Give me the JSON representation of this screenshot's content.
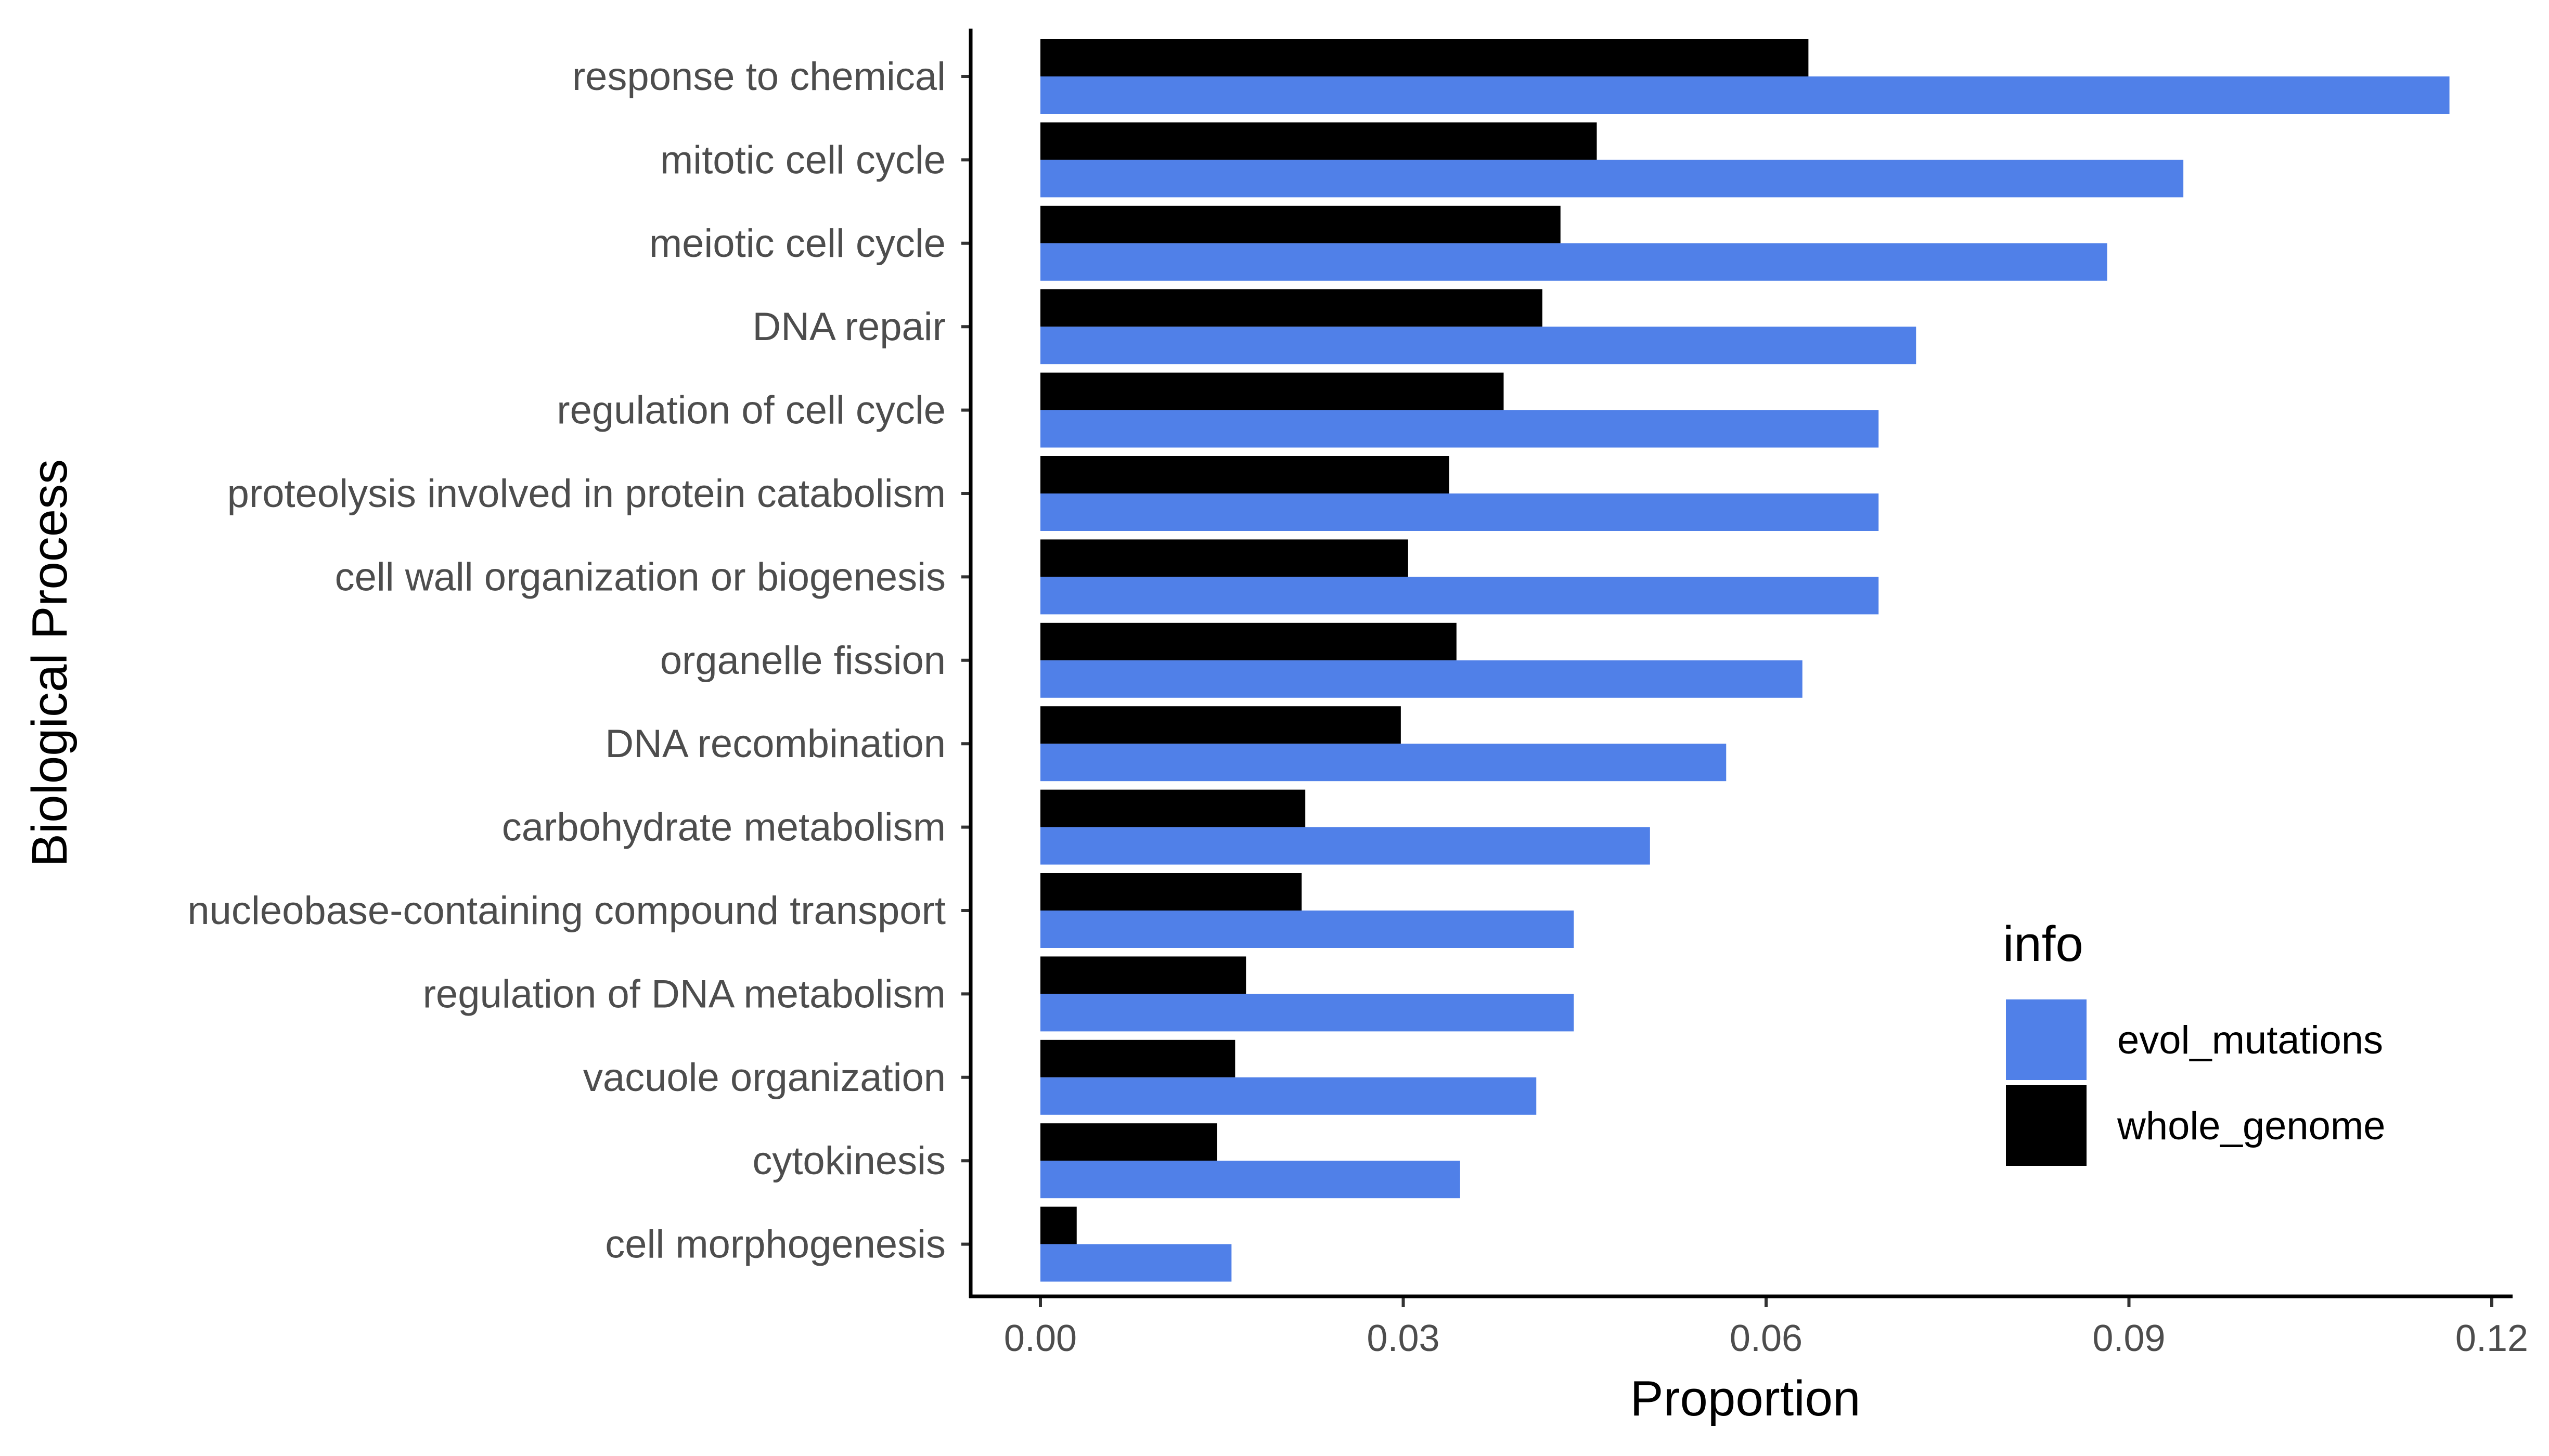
{
  "chart_data": {
    "type": "bar",
    "orientation": "horizontal",
    "xlabel": "Proportion",
    "ylabel": "Biological Process",
    "xlim": [
      0,
      0.12
    ],
    "xticks": [
      0.0,
      0.03,
      0.06,
      0.09,
      0.12
    ],
    "xtick_labels": [
      "0.00",
      "0.03",
      "0.06",
      "0.09",
      "0.12"
    ],
    "grid": false,
    "legend_title": "info",
    "legend_position": "right",
    "categories": [
      "response to chemical",
      "mitotic cell cycle",
      "meiotic cell cycle",
      "DNA repair",
      "regulation of cell cycle",
      "proteolysis involved in protein catabolism",
      "cell wall organization or biogenesis",
      "organelle fission",
      "DNA recombination",
      "carbohydrate metabolism",
      "nucleobase-containing compound transport",
      "regulation of DNA metabolism",
      "vacuole organization",
      "cytokinesis",
      "cell morphogenesis"
    ],
    "series": [
      {
        "name": "whole_genome",
        "color": "#000000",
        "values": [
          0.0635,
          0.046,
          0.043,
          0.0415,
          0.0383,
          0.0338,
          0.0304,
          0.0344,
          0.0298,
          0.0219,
          0.0216,
          0.017,
          0.0161,
          0.0146,
          0.003
        ]
      },
      {
        "name": "evol_mutations",
        "color": "#5080E8",
        "values": [
          0.1165,
          0.0945,
          0.0882,
          0.0724,
          0.0693,
          0.0693,
          0.0693,
          0.063,
          0.0567,
          0.0504,
          0.0441,
          0.0441,
          0.041,
          0.0347,
          0.0158
        ]
      }
    ],
    "legend_entries": [
      {
        "name": "evol_mutations",
        "color": "#5080E8"
      },
      {
        "name": "whole_genome",
        "color": "#000000"
      }
    ]
  }
}
